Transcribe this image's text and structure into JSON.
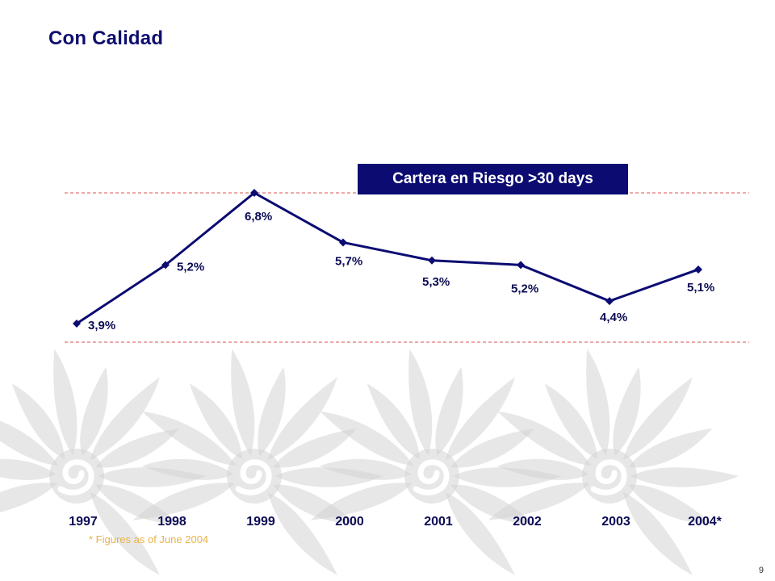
{
  "header": {
    "title": "Con Calidad"
  },
  "footer": {
    "footnote": "* Figures as of June 2004",
    "page_number": "9"
  },
  "colors": {
    "title": "#0e0e6e",
    "line": "#0b0b72",
    "labels": "#0b0b55",
    "box_bg": "#0b0b72",
    "reference_lines": "#d9534f",
    "footnote": "#e8b34a",
    "watermark": "#d4d4d4"
  },
  "chart_data": {
    "type": "line",
    "title": "Cartera en Riesgo >30 days",
    "categories": [
      "1997",
      "1998",
      "1999",
      "2000",
      "2001",
      "2002",
      "2003",
      "2004*"
    ],
    "series": [
      {
        "values": [
          3.9,
          5.2,
          6.8,
          5.7,
          5.3,
          5.2,
          4.4,
          5.1
        ],
        "labels": [
          "3,9%",
          "5,2%",
          "6,8%",
          "5,7%",
          "5,3%",
          "5,2%",
          "4,4%",
          "5,1%"
        ]
      }
    ],
    "xlabel": "",
    "ylabel": "",
    "grid": false,
    "legend": "none",
    "reference_lines": [
      3.5,
      6.8
    ]
  }
}
